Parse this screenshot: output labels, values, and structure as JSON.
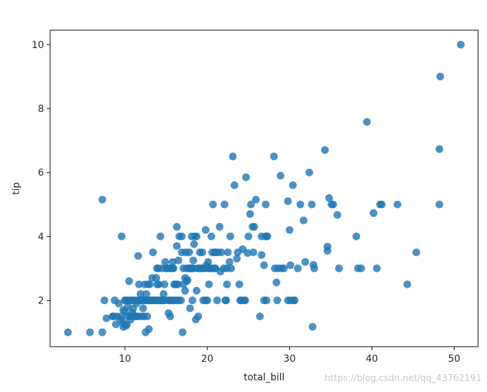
{
  "watermark": "https://blog.csdn.net/qq_43762191",
  "chart_data": {
    "type": "scatter",
    "xlabel": "total_bill",
    "ylabel": "tip",
    "xlim": [
      0.91,
      52.9
    ],
    "ylim": [
      0.55,
      10.45
    ],
    "x_ticks": [
      10,
      20,
      30,
      40,
      50
    ],
    "y_ticks": [
      2,
      4,
      6,
      8,
      10
    ],
    "grid": false,
    "point_color": "#1f77b4",
    "points": [
      [
        3.07,
        1.0
      ],
      [
        5.75,
        1.0
      ],
      [
        7.25,
        1.0
      ],
      [
        7.25,
        5.15
      ],
      [
        7.5,
        2.0
      ],
      [
        7.75,
        1.44
      ],
      [
        8.5,
        1.5
      ],
      [
        8.75,
        2.0
      ],
      [
        8.9,
        1.25
      ],
      [
        9.0,
        1.5
      ],
      [
        9.25,
        1.9
      ],
      [
        9.5,
        1.5
      ],
      [
        9.6,
        4.0
      ],
      [
        9.75,
        1.3
      ],
      [
        9.8,
        1.17
      ],
      [
        10.0,
        1.65
      ],
      [
        10.1,
        2.0
      ],
      [
        10.3,
        1.5
      ],
      [
        10.25,
        1.25
      ],
      [
        10.35,
        1.8
      ],
      [
        10.5,
        2.6
      ],
      [
        10.6,
        1.5
      ],
      [
        10.8,
        2.0
      ],
      [
        10.7,
        1.4
      ],
      [
        11.0,
        1.74
      ],
      [
        11.2,
        1.5
      ],
      [
        11.4,
        1.9
      ],
      [
        11.5,
        2.0
      ],
      [
        11.6,
        3.39
      ],
      [
        11.7,
        2.5
      ],
      [
        11.9,
        2.2
      ],
      [
        12.0,
        1.5
      ],
      [
        12.2,
        1.75
      ],
      [
        12.4,
        2.5
      ],
      [
        12.5,
        1.0
      ],
      [
        12.6,
        2.0
      ],
      [
        12.7,
        1.5
      ],
      [
        12.8,
        2.5
      ],
      [
        12.9,
        1.1
      ],
      [
        13.0,
        2.0
      ],
      [
        13.1,
        2.0
      ],
      [
        13.3,
        2.7
      ],
      [
        13.4,
        3.5
      ],
      [
        13.5,
        2.0
      ],
      [
        13.6,
        2.0
      ],
      [
        13.8,
        2.0
      ],
      [
        13.9,
        3.0
      ],
      [
        14.0,
        3.0
      ],
      [
        14.1,
        2.5
      ],
      [
        14.2,
        2.0
      ],
      [
        14.3,
        4.0
      ],
      [
        14.5,
        2.0
      ],
      [
        14.7,
        2.2
      ],
      [
        14.9,
        3.2
      ],
      [
        15.0,
        2.0
      ],
      [
        15.1,
        3.0
      ],
      [
        15.3,
        1.6
      ],
      [
        15.4,
        3.0
      ],
      [
        15.5,
        1.5
      ],
      [
        15.6,
        3.0
      ],
      [
        15.7,
        2.0
      ],
      [
        15.8,
        3.2
      ],
      [
        15.9,
        3.0
      ],
      [
        16.0,
        2.0
      ],
      [
        16.1,
        2.5
      ],
      [
        16.3,
        3.7
      ],
      [
        16.3,
        4.3
      ],
      [
        16.4,
        2.5
      ],
      [
        16.5,
        3.25
      ],
      [
        16.6,
        4.0
      ],
      [
        16.8,
        2.0
      ],
      [
        16.9,
        3.5
      ],
      [
        17.0,
        1.0
      ],
      [
        17.1,
        3.0
      ],
      [
        17.3,
        2.7
      ],
      [
        17.4,
        3.5
      ],
      [
        17.5,
        3.0
      ],
      [
        17.6,
        2.64
      ],
      [
        17.8,
        3.5
      ],
      [
        17.9,
        1.75
      ],
      [
        18.0,
        3.0
      ],
      [
        18.1,
        4.0
      ],
      [
        18.2,
        2.0
      ],
      [
        18.3,
        3.0
      ],
      [
        18.4,
        3.76
      ],
      [
        18.5,
        4.0
      ],
      [
        18.6,
        1.4
      ],
      [
        18.7,
        2.3
      ],
      [
        18.8,
        3.0
      ],
      [
        18.9,
        1.5
      ],
      [
        19.1,
        3.0
      ],
      [
        19.4,
        3.5
      ],
      [
        19.5,
        2.0
      ],
      [
        19.7,
        3.0
      ],
      [
        19.8,
        4.2
      ],
      [
        19.9,
        3.1
      ],
      [
        20.0,
        2.0
      ],
      [
        20.1,
        3.2
      ],
      [
        20.2,
        2.5
      ],
      [
        20.3,
        3.0
      ],
      [
        20.5,
        4.0
      ],
      [
        20.6,
        3.5
      ],
      [
        20.7,
        5.0
      ],
      [
        20.9,
        3.5
      ],
      [
        21.0,
        3.0
      ],
      [
        21.2,
        2.0
      ],
      [
        21.3,
        3.5
      ],
      [
        21.5,
        4.3
      ],
      [
        21.6,
        2.9
      ],
      [
        22.1,
        5.0
      ],
      [
        22.2,
        2.0
      ],
      [
        22.4,
        2.5
      ],
      [
        22.5,
        3.5
      ],
      [
        22.8,
        4.0
      ],
      [
        22.9,
        3.0
      ],
      [
        23.1,
        6.5
      ],
      [
        23.3,
        5.6
      ],
      [
        23.6,
        3.3
      ],
      [
        23.9,
        2.5
      ],
      [
        24.1,
        2.0
      ],
      [
        24.3,
        3.6
      ],
      [
        24.6,
        2.0
      ],
      [
        24.7,
        5.85
      ],
      [
        24.9,
        3.48
      ],
      [
        25.2,
        4.7
      ],
      [
        25.3,
        5.0
      ],
      [
        25.5,
        4.3
      ],
      [
        25.6,
        3.5
      ],
      [
        25.9,
        5.15
      ],
      [
        26.4,
        1.5
      ],
      [
        26.6,
        3.42
      ],
      [
        26.9,
        3.1
      ],
      [
        27.1,
        5.0
      ],
      [
        27.2,
        4.0
      ],
      [
        27.2,
        2.0
      ],
      [
        28.1,
        6.5
      ],
      [
        28.2,
        3.0
      ],
      [
        28.4,
        2.56
      ],
      [
        28.5,
        2.0
      ],
      [
        28.9,
        5.9
      ],
      [
        29.0,
        3.0
      ],
      [
        29.8,
        5.1
      ],
      [
        30.0,
        4.2
      ],
      [
        30.1,
        2.0
      ],
      [
        30.4,
        5.6
      ],
      [
        30.1,
        3.1
      ],
      [
        30.5,
        2.0
      ],
      [
        31.3,
        5.0
      ],
      [
        31.7,
        4.5
      ],
      [
        32.4,
        6.0
      ],
      [
        32.7,
        5.0
      ],
      [
        32.8,
        1.17
      ],
      [
        32.9,
        3.11
      ],
      [
        34.3,
        6.7
      ],
      [
        34.6,
        3.55
      ],
      [
        34.6,
        3.68
      ],
      [
        34.8,
        5.2
      ],
      [
        35.3,
        5.0
      ],
      [
        35.8,
        4.67
      ],
      [
        38.1,
        4.0
      ],
      [
        38.3,
        3.0
      ],
      [
        38.7,
        3.0
      ],
      [
        39.4,
        7.58
      ],
      [
        40.2,
        4.73
      ],
      [
        40.6,
        3.0
      ],
      [
        41.2,
        5.0
      ],
      [
        43.1,
        5.0
      ],
      [
        44.3,
        2.5
      ],
      [
        45.4,
        3.5
      ],
      [
        48.2,
        5.0
      ],
      [
        48.2,
        6.73
      ],
      [
        48.3,
        9.0
      ],
      [
        50.8,
        10.0
      ],
      [
        31.9,
        3.2
      ],
      [
        17.5,
        2.6
      ],
      [
        18.3,
        3.25
      ],
      [
        19.1,
        3.5
      ],
      [
        15.0,
        3.0
      ],
      [
        12.2,
        2.0
      ],
      [
        10.9,
        1.6
      ],
      [
        13.8,
        2.7
      ],
      [
        14.8,
        2.5
      ],
      [
        16.0,
        2.5
      ],
      [
        17.9,
        3.0
      ],
      [
        20.6,
        3.0
      ],
      [
        22.7,
        3.2
      ],
      [
        24.5,
        2.0
      ],
      [
        26.6,
        4.0
      ],
      [
        27.1,
        4.0
      ],
      [
        30.6,
        2.0
      ],
      [
        13.4,
        2.0
      ],
      [
        11.7,
        2.0
      ],
      [
        12.0,
        2.0
      ],
      [
        14.7,
        2.0
      ],
      [
        15.4,
        2.0
      ],
      [
        16.2,
        2.0
      ],
      [
        19.8,
        2.0
      ],
      [
        22.3,
        2.0
      ],
      [
        24.0,
        2.0
      ],
      [
        10.0,
        2.0
      ],
      [
        10.3,
        2.0
      ],
      [
        10.6,
        2.0
      ],
      [
        11.0,
        2.0
      ],
      [
        11.4,
        1.5
      ],
      [
        12.5,
        2.0
      ],
      [
        12.9,
        2.0
      ],
      [
        13.4,
        2.0
      ],
      [
        14.0,
        2.0
      ],
      [
        16.5,
        2.0
      ],
      [
        17.3,
        2.3
      ],
      [
        18.1,
        3.0
      ],
      [
        19.0,
        3.0
      ],
      [
        19.5,
        3.0
      ],
      [
        20.3,
        3.0
      ],
      [
        21.0,
        3.5
      ],
      [
        21.7,
        3.5
      ],
      [
        22.4,
        3.0
      ],
      [
        25.0,
        4.0
      ],
      [
        26.9,
        2.0
      ],
      [
        28.6,
        3.0
      ],
      [
        29.8,
        2.0
      ],
      [
        17.8,
        3.0
      ],
      [
        18.7,
        4.0
      ],
      [
        16.9,
        4.0
      ],
      [
        15.8,
        3.0
      ],
      [
        14.5,
        3.0
      ],
      [
        13.9,
        2.5
      ],
      [
        13.0,
        2.5
      ],
      [
        12.6,
        2.2
      ],
      [
        11.9,
        2.0
      ],
      [
        11.2,
        2.0
      ],
      [
        9.8,
        1.7
      ],
      [
        9.5,
        1.4
      ],
      [
        8.6,
        1.5
      ],
      [
        10.1,
        1.2
      ],
      [
        10.8,
        1.5
      ],
      [
        11.6,
        1.5
      ],
      [
        12.3,
        1.5
      ],
      [
        13.2,
        2.0
      ],
      [
        14.3,
        2.0
      ],
      [
        15.4,
        2.0
      ],
      [
        16.3,
        2.5
      ],
      [
        17.1,
        2.5
      ],
      [
        18.2,
        3.0
      ],
      [
        19.3,
        3.0
      ],
      [
        20.1,
        3.0
      ],
      [
        20.9,
        3.0
      ],
      [
        22.0,
        3.0
      ],
      [
        23.7,
        3.5
      ],
      [
        25.7,
        4.3
      ],
      [
        27.3,
        4.0
      ],
      [
        29.3,
        3.0
      ],
      [
        31.0,
        3.0
      ],
      [
        33.0,
        3.0
      ],
      [
        35.1,
        5.0
      ],
      [
        36.0,
        3.0
      ],
      [
        41.0,
        5.0
      ]
    ]
  }
}
